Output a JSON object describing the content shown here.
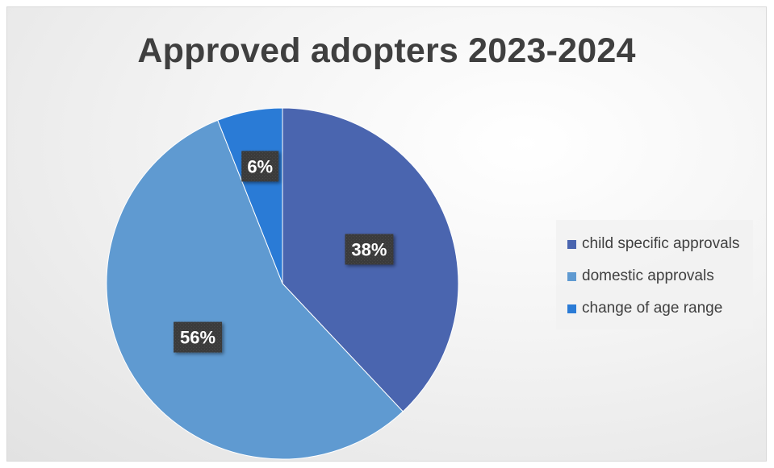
{
  "chart_data": {
    "type": "pie",
    "title": "Approved adopters 2023-2024",
    "legend_position": "right",
    "slices": [
      {
        "label": "child specific approvals",
        "value": 38,
        "display": "38%",
        "color": "#4a65af"
      },
      {
        "label": "domestic approvals",
        "value": 56,
        "display": "56%",
        "color": "#5f9ad1"
      },
      {
        "label": "change of age range",
        "value": 6,
        "display": "6%",
        "color": "#2a7bd6"
      }
    ]
  }
}
